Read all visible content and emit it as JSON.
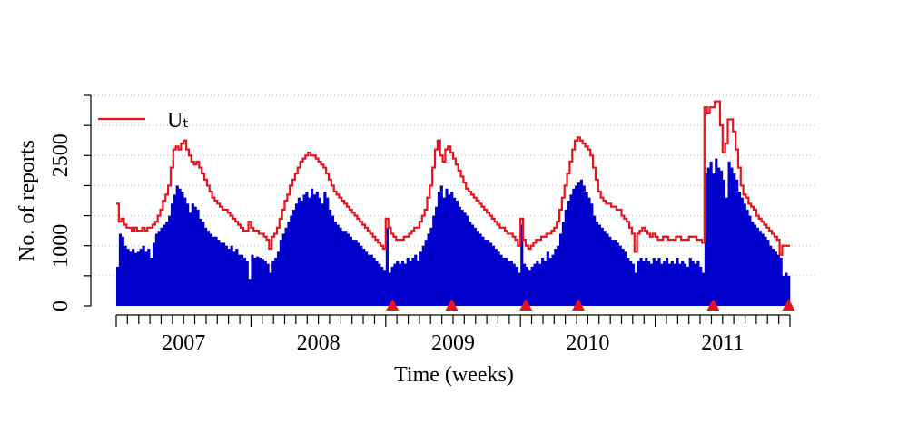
{
  "chart_data": {
    "type": "bar",
    "xlabel": "Time (weeks)",
    "ylabel": "No. of reports",
    "xlim": [
      2007,
      2012
    ],
    "ylim": [
      0,
      3500
    ],
    "xticks": [
      {
        "value": 2007.5,
        "label": "2007"
      },
      {
        "value": 2008.5,
        "label": "2008"
      },
      {
        "value": 2009.5,
        "label": "2009"
      },
      {
        "value": 2010.5,
        "label": "2010"
      },
      {
        "value": 2011.5,
        "label": "2011"
      }
    ],
    "minor_xticks": [
      2007,
      2007.083,
      2007.167,
      2007.25,
      2007.333,
      2007.417,
      2007.5,
      2007.583,
      2007.667,
      2007.75,
      2007.833,
      2007.917,
      2008,
      2008.083,
      2008.167,
      2008.25,
      2008.333,
      2008.417,
      2008.5,
      2008.583,
      2008.667,
      2008.75,
      2008.833,
      2008.917,
      2009,
      2009.083,
      2009.167,
      2009.25,
      2009.333,
      2009.417,
      2009.5,
      2009.583,
      2009.667,
      2009.75,
      2009.833,
      2009.917,
      2010,
      2010.083,
      2010.167,
      2010.25,
      2010.333,
      2010.417,
      2010.5,
      2010.583,
      2010.667,
      2010.75,
      2010.833,
      2010.917,
      2011,
      2011.083,
      2011.167,
      2011.25,
      2011.333,
      2011.417,
      2011.5,
      2011.583,
      2011.667,
      2011.75,
      2011.833,
      2011.917,
      2012
    ],
    "yticks": [
      0,
      1000,
      2500
    ],
    "minor_yticks": [
      500,
      1500,
      2000,
      3000,
      3500
    ],
    "grid": true,
    "legend": "top-left",
    "alarms": [
      2009.05,
      2009.49,
      2010.04,
      2010.43,
      2011.43,
      2011.99
    ],
    "alarm_color": "#e8121b",
    "series": [
      {
        "color": "#0000cd",
        "values": [
          650,
          1200,
          1150,
          1000,
          950,
          900,
          950,
          880,
          900,
          950,
          1000,
          900,
          950,
          800,
          1050,
          1200,
          1250,
          1300,
          1350,
          1400,
          1500,
          1700,
          1850,
          2000,
          1950,
          1900,
          1800,
          1700,
          1550,
          1700,
          1650,
          1600,
          1450,
          1400,
          1300,
          1250,
          1200,
          1150,
          1150,
          1100,
          1050,
          1050,
          1000,
          950,
          1000,
          900,
          950,
          850,
          850,
          800,
          750,
          450,
          850,
          800,
          820,
          800,
          780,
          750,
          700,
          550,
          750,
          800,
          900,
          1100,
          1200,
          1300,
          1400,
          1500,
          1600,
          1700,
          1800,
          1750,
          1850,
          1900,
          1800,
          1950,
          1850,
          1900,
          1800,
          1700,
          1900,
          1800,
          1600,
          1500,
          1400,
          1350,
          1300,
          1250,
          1250,
          1200,
          1150,
          1100,
          1100,
          1050,
          1000,
          950,
          900,
          850,
          850,
          800,
          750,
          700,
          650,
          600,
          1300,
          550,
          650,
          700,
          750,
          700,
          750,
          700,
          800,
          750,
          800,
          850,
          750,
          900,
          1000,
          1100,
          1200,
          1300,
          1500,
          1650,
          1900,
          2000,
          1800,
          1950,
          1850,
          1900,
          1800,
          1750,
          1650,
          1600,
          1550,
          1500,
          1400,
          1350,
          1300,
          1250,
          1200,
          1150,
          1100,
          1100,
          1050,
          1000,
          950,
          900,
          850,
          800,
          800,
          750,
          750,
          700,
          650,
          550,
          1350,
          700,
          650,
          600,
          650,
          700,
          750,
          700,
          800,
          750,
          900,
          800,
          850,
          950,
          1000,
          1200,
          1400,
          1600,
          1750,
          1850,
          1950,
          2000,
          2050,
          2100,
          2000,
          1900,
          1800,
          1700,
          1500,
          1400,
          1350,
          1300,
          1250,
          1200,
          1150,
          1100,
          1100,
          1050,
          1000,
          950,
          900,
          800,
          750,
          700,
          550,
          750,
          800,
          750,
          800,
          750,
          700,
          800,
          750,
          800,
          700,
          750,
          800,
          700,
          750,
          700,
          800,
          700,
          750,
          700,
          650,
          800,
          750,
          700,
          750,
          650,
          550,
          2200,
          2300,
          2400,
          2200,
          2450,
          2300,
          2250,
          2100,
          1800,
          2400,
          2300,
          2200,
          2100,
          1900,
          1800,
          1700,
          1600,
          1500,
          1400,
          1350,
          1300,
          1250,
          1200,
          1150,
          1100,
          1000,
          950,
          900,
          850,
          800,
          500,
          550,
          500
        ]
      },
      {
        "name": "Uₜ",
        "color": "#e8121b",
        "kind": "step",
        "values": [
          1700,
          1400,
          1450,
          1350,
          1300,
          1300,
          1250,
          1300,
          1250,
          1250,
          1300,
          1250,
          1300,
          1300,
          1350,
          1400,
          1500,
          1600,
          1750,
          1850,
          2000,
          2300,
          2600,
          2650,
          2600,
          2700,
          2750,
          2600,
          2500,
          2400,
          2350,
          2400,
          2300,
          2200,
          2100,
          2000,
          1900,
          1800,
          1750,
          1700,
          1650,
          1600,
          1600,
          1550,
          1500,
          1450,
          1400,
          1350,
          1300,
          1250,
          1250,
          1400,
          1300,
          1250,
          1250,
          1200,
          1200,
          1150,
          1100,
          950,
          1150,
          1200,
          1300,
          1450,
          1600,
          1750,
          1850,
          2000,
          2100,
          2200,
          2300,
          2400,
          2450,
          2500,
          2550,
          2500,
          2500,
          2450,
          2400,
          2350,
          2300,
          2200,
          2100,
          2000,
          1900,
          1850,
          1800,
          1750,
          1700,
          1650,
          1600,
          1550,
          1500,
          1450,
          1400,
          1350,
          1300,
          1250,
          1200,
          1150,
          1100,
          1050,
          1000,
          950,
          1450,
          1300,
          1200,
          1150,
          1100,
          1100,
          1100,
          1150,
          1150,
          1200,
          1250,
          1300,
          1300,
          1400,
          1500,
          1600,
          1800,
          2000,
          2300,
          2600,
          2750,
          2500,
          2400,
          2600,
          2650,
          2550,
          2450,
          2350,
          2250,
          2150,
          2050,
          1950,
          1900,
          1850,
          1800,
          1750,
          1700,
          1650,
          1600,
          1550,
          1500,
          1450,
          1400,
          1350,
          1300,
          1300,
          1250,
          1200,
          1200,
          1150,
          1100,
          1000,
          1450,
          1100,
          1000,
          950,
          1000,
          1050,
          1100,
          1100,
          1150,
          1150,
          1200,
          1200,
          1250,
          1300,
          1400,
          1600,
          1800,
          2000,
          2200,
          2400,
          2600,
          2750,
          2800,
          2750,
          2700,
          2650,
          2600,
          2500,
          2300,
          2100,
          1900,
          1800,
          1750,
          1700,
          1700,
          1650,
          1650,
          1600,
          1600,
          1500,
          1450,
          1400,
          1300,
          1200,
          900,
          1200,
          1250,
          1300,
          1250,
          1200,
          1150,
          1200,
          1150,
          1100,
          1100,
          1150,
          1150,
          1100,
          1100,
          1100,
          1150,
          1150,
          1100,
          1100,
          1100,
          1150,
          1150,
          1150,
          1100,
          1100,
          1050,
          3300,
          3200,
          3300,
          3300,
          3400,
          3400,
          3000,
          2550,
          2700,
          3100,
          3100,
          2900,
          2600,
          2300,
          2000,
          1850,
          1800,
          1700,
          1650,
          1600,
          1500,
          1450,
          1400,
          1350,
          1300,
          1250,
          1200,
          1150,
          1100,
          850,
          1000,
          1000,
          1000
        ]
      }
    ]
  }
}
